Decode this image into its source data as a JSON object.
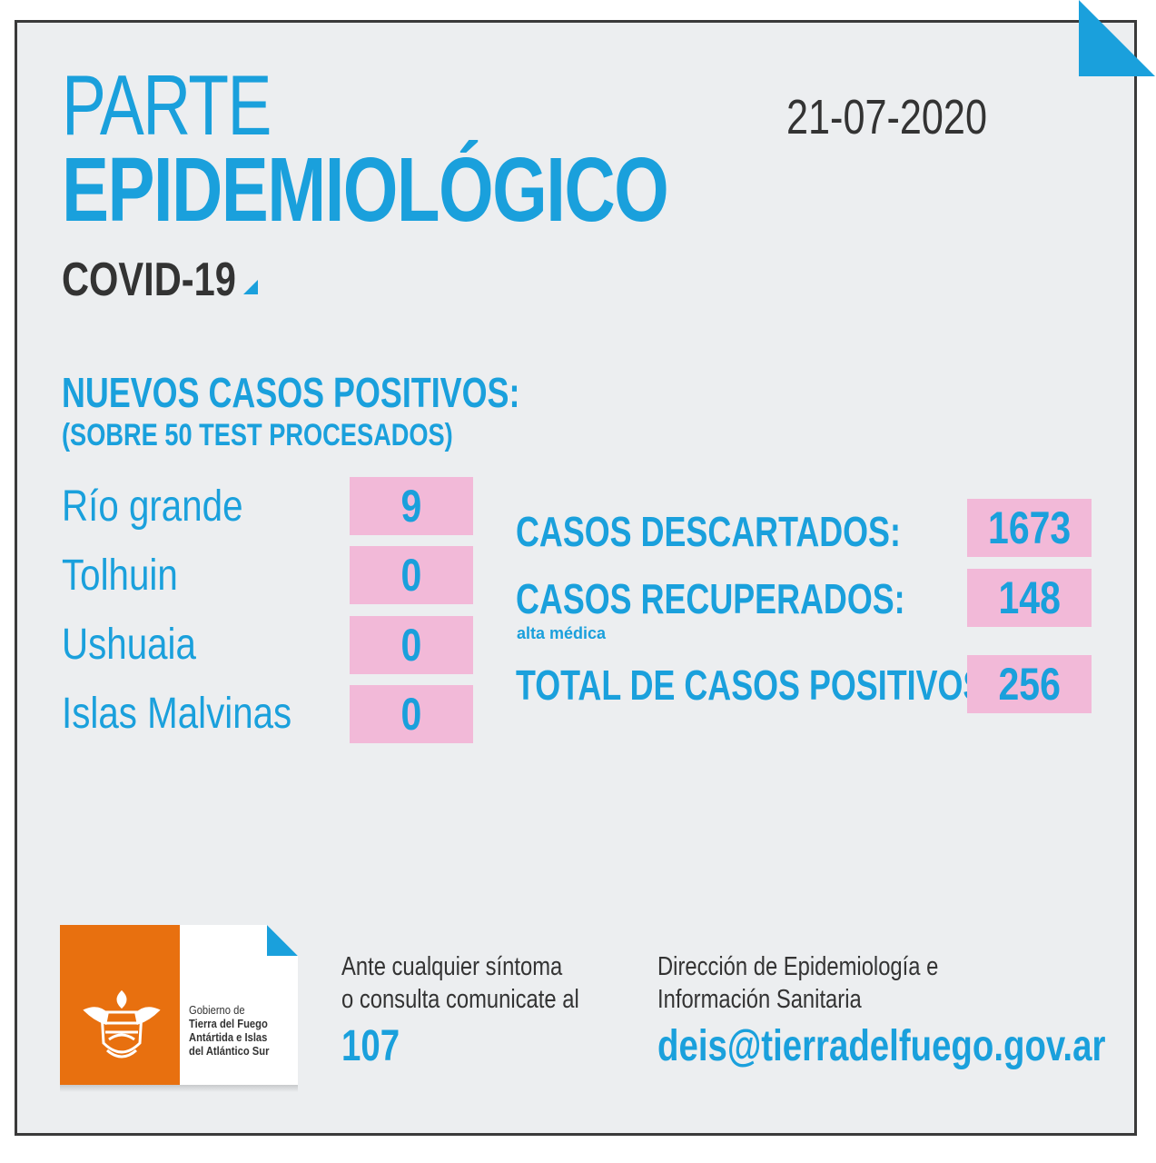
{
  "header": {
    "title_line1": "PARTE",
    "title_line2": "EPIDEMIOLÓGICO",
    "date": "21-07-2020",
    "subtitle": "COVID-19"
  },
  "new_cases": {
    "title": "NUEVOS CASOS POSITIVOS:",
    "subtitle": "(SOBRE 50 TEST PROCESADOS)",
    "rows": [
      {
        "city": "Río grande",
        "value": "9"
      },
      {
        "city": "Tolhuin",
        "value": "0"
      },
      {
        "city": "Ushuaia",
        "value": "0"
      },
      {
        "city": "Islas Malvinas",
        "value": "0"
      }
    ]
  },
  "stats": {
    "descartados_label": "CASOS DESCARTADOS:",
    "descartados_value": "1673",
    "recuperados_label": "CASOS RECUPERADOS:",
    "recuperados_note": "alta médica",
    "recuperados_value": "148",
    "total_label": "TOTAL DE CASOS POSITIVOS",
    "total_value": "256"
  },
  "logo": {
    "line1": "Gobierno de",
    "line2": "Tierra del Fuego",
    "line3": "Antártida e Islas",
    "line4": "del Atlántico Sur"
  },
  "contact": {
    "phone_line1": "Ante cualquier síntoma",
    "phone_line2": "o consulta comunicate al",
    "phone_number": "107",
    "dept_line1": "Dirección de Epidemiología e",
    "dept_line2": "Información Sanitaria",
    "email": "deis@tierradelfuego.gov.ar"
  },
  "colors": {
    "accent": "#1aa0dc",
    "value_box": "#f2b9d8",
    "logo_orange": "#e8700f",
    "background": "#eceef0",
    "text_dark": "#333333"
  }
}
